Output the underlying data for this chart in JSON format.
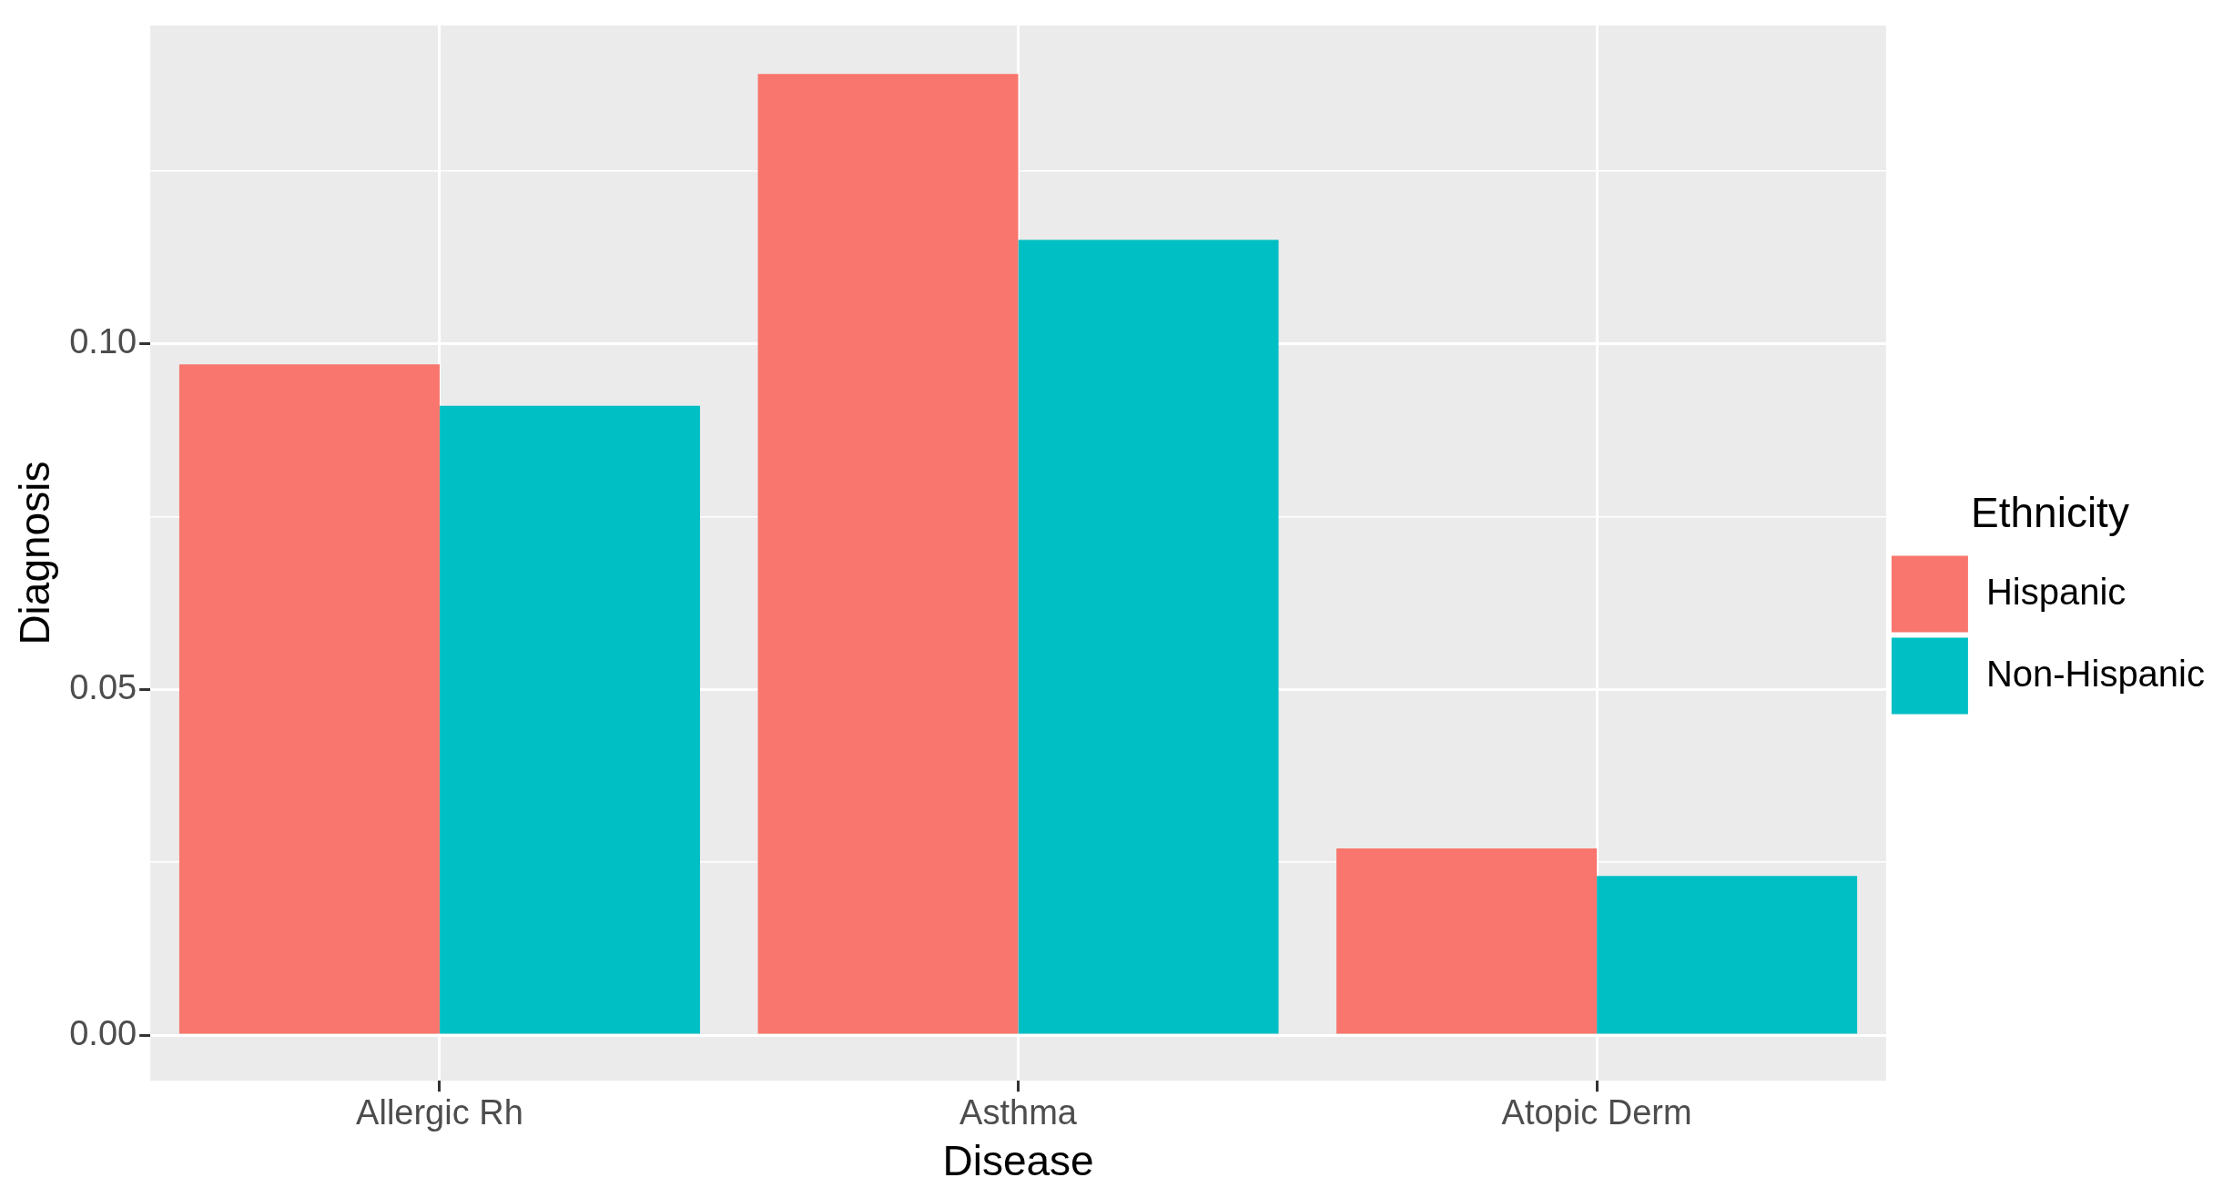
{
  "chart_data": {
    "type": "bar",
    "xlabel": "Disease",
    "ylabel": "Diagnosis",
    "legend_title": "Ethnicity",
    "categories": [
      "Allergic Rh",
      "Asthma",
      "Atopic Derm"
    ],
    "series": [
      {
        "name": "Hispanic",
        "color": "#f8766d",
        "values": [
          0.097,
          0.139,
          0.027
        ]
      },
      {
        "name": "Non-Hispanic",
        "color": "#00bfc4",
        "values": [
          0.091,
          0.115,
          0.023
        ]
      }
    ],
    "ylim": [
      -0.0066,
      0.146
    ],
    "yticks": [
      {
        "value": 0,
        "label": "0.00"
      },
      {
        "value": 0.025,
        "label": null
      },
      {
        "value": 0.05,
        "label": "0.05"
      },
      {
        "value": 0.075,
        "label": null
      },
      {
        "value": 0.1,
        "label": "0.10"
      },
      {
        "value": 0.125,
        "label": null
      }
    ],
    "grid": true,
    "legend": "right"
  }
}
